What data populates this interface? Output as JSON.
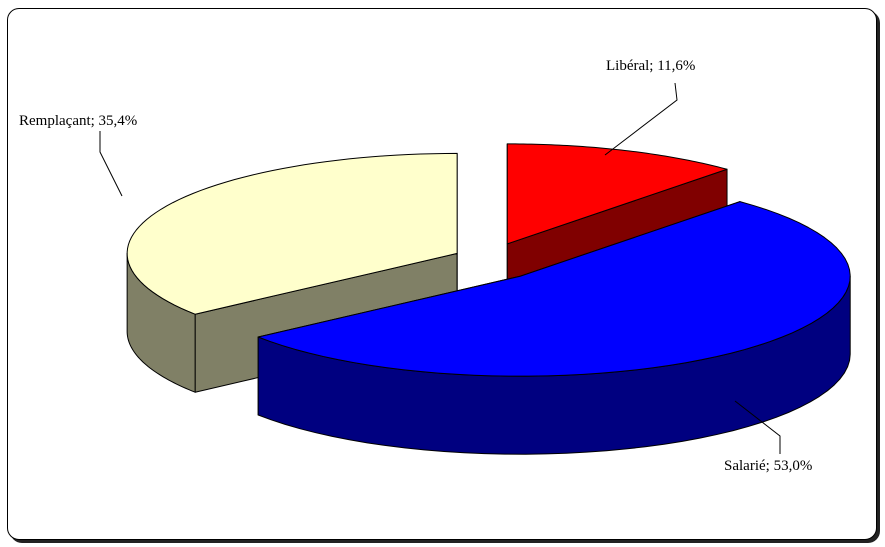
{
  "chart_data": {
    "type": "pie",
    "style": "3d-exploded",
    "title": "",
    "categories": [
      "Libéral",
      "Salarié",
      "Remplaçant"
    ],
    "values": [
      11.6,
      53.0,
      35.4
    ],
    "unit": "%",
    "labels": [
      "Libéral; 11,6%",
      "Salarié; 53,0%",
      "Remplaçant; 35,4%"
    ],
    "colors": {
      "top": [
        "#ff0000",
        "#0000ff",
        "#ffffcc"
      ],
      "side": [
        "#800000",
        "#000080",
        "#808066"
      ]
    },
    "legend": "none"
  }
}
